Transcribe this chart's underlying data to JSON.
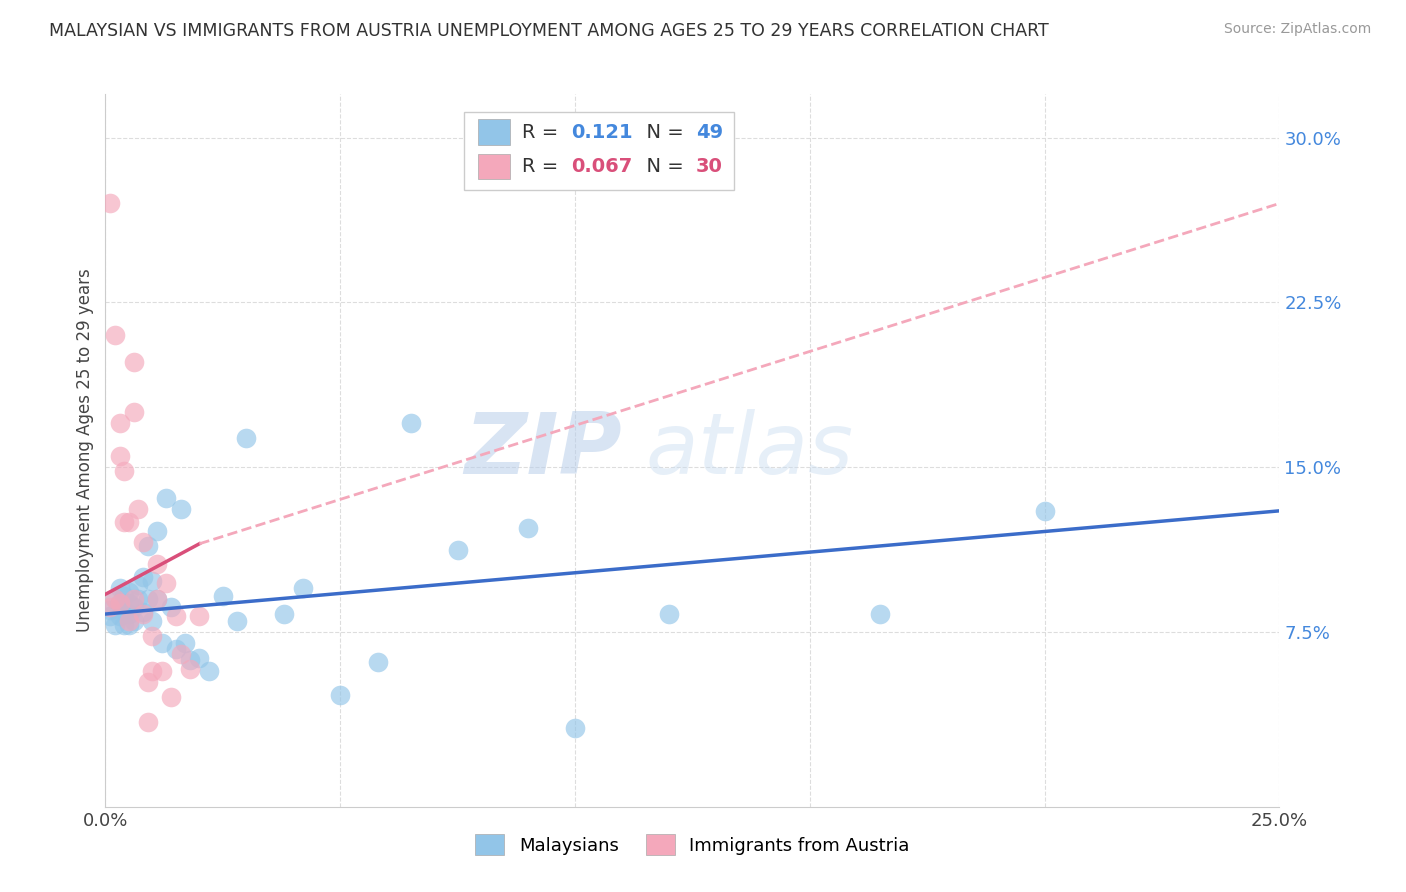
{
  "title": "MALAYSIAN VS IMMIGRANTS FROM AUSTRIA UNEMPLOYMENT AMONG AGES 25 TO 29 YEARS CORRELATION CHART",
  "source": "Source: ZipAtlas.com",
  "ylabel": "Unemployment Among Ages 25 to 29 years",
  "xlim": [
    0.0,
    0.25
  ],
  "ylim": [
    -0.005,
    0.32
  ],
  "xticks": [
    0.0,
    0.05,
    0.1,
    0.15,
    0.2,
    0.25
  ],
  "xticklabels": [
    "0.0%",
    "",
    "",
    "",
    "",
    "25.0%"
  ],
  "yticks_right": [
    0.075,
    0.15,
    0.225,
    0.3
  ],
  "ytick_right_labels": [
    "7.5%",
    "15.0%",
    "22.5%",
    "30.0%"
  ],
  "malaysian_color": "#92C5E8",
  "austria_color": "#F4A8BB",
  "trendline_malaysian_color": "#3B6CC9",
  "trendline_austria_solid_color": "#D94F7A",
  "trendline_austria_dashed_color": "#F4A8BB",
  "legend_r_malaysian": "0.121",
  "legend_n_malaysian": "49",
  "legend_r_austria": "0.067",
  "legend_n_austria": "30",
  "watermark_zip": "ZIP",
  "watermark_atlas": "atlas",
  "malaysian_x": [
    0.001,
    0.001,
    0.002,
    0.002,
    0.003,
    0.003,
    0.003,
    0.004,
    0.004,
    0.004,
    0.005,
    0.005,
    0.005,
    0.005,
    0.006,
    0.006,
    0.007,
    0.007,
    0.008,
    0.008,
    0.009,
    0.009,
    0.01,
    0.01,
    0.011,
    0.011,
    0.012,
    0.013,
    0.014,
    0.015,
    0.016,
    0.017,
    0.018,
    0.02,
    0.022,
    0.025,
    0.028,
    0.03,
    0.038,
    0.042,
    0.05,
    0.058,
    0.065,
    0.075,
    0.09,
    0.1,
    0.12,
    0.165,
    0.2
  ],
  "malaysian_y": [
    0.085,
    0.082,
    0.09,
    0.078,
    0.082,
    0.088,
    0.095,
    0.078,
    0.085,
    0.091,
    0.078,
    0.083,
    0.088,
    0.093,
    0.08,
    0.086,
    0.09,
    0.096,
    0.084,
    0.1,
    0.09,
    0.114,
    0.08,
    0.098,
    0.09,
    0.121,
    0.07,
    0.136,
    0.086,
    0.067,
    0.131,
    0.07,
    0.062,
    0.063,
    0.057,
    0.091,
    0.08,
    0.163,
    0.083,
    0.095,
    0.046,
    0.061,
    0.17,
    0.112,
    0.122,
    0.031,
    0.083,
    0.083,
    0.13
  ],
  "austria_x": [
    0.001,
    0.001,
    0.002,
    0.002,
    0.003,
    0.003,
    0.003,
    0.004,
    0.004,
    0.005,
    0.005,
    0.006,
    0.006,
    0.006,
    0.007,
    0.008,
    0.008,
    0.009,
    0.009,
    0.01,
    0.01,
    0.011,
    0.011,
    0.012,
    0.013,
    0.014,
    0.015,
    0.016,
    0.018,
    0.02
  ],
  "austria_y": [
    0.086,
    0.27,
    0.09,
    0.21,
    0.155,
    0.17,
    0.088,
    0.148,
    0.125,
    0.08,
    0.125,
    0.175,
    0.198,
    0.09,
    0.131,
    0.083,
    0.116,
    0.052,
    0.034,
    0.057,
    0.073,
    0.106,
    0.09,
    0.057,
    0.097,
    0.045,
    0.082,
    0.065,
    0.058,
    0.082
  ],
  "mal_trend_x0": 0.0,
  "mal_trend_y0": 0.083,
  "mal_trend_x1": 0.25,
  "mal_trend_y1": 0.13,
  "aut_trend_solid_x0": 0.0,
  "aut_trend_solid_y0": 0.092,
  "aut_trend_solid_x1": 0.02,
  "aut_trend_solid_y1": 0.115,
  "aut_trend_dash_x0": 0.02,
  "aut_trend_dash_y0": 0.115,
  "aut_trend_dash_x1": 0.25,
  "aut_trend_dash_y1": 0.27,
  "background_color": "#FFFFFF",
  "grid_color": "#DDDDDD"
}
